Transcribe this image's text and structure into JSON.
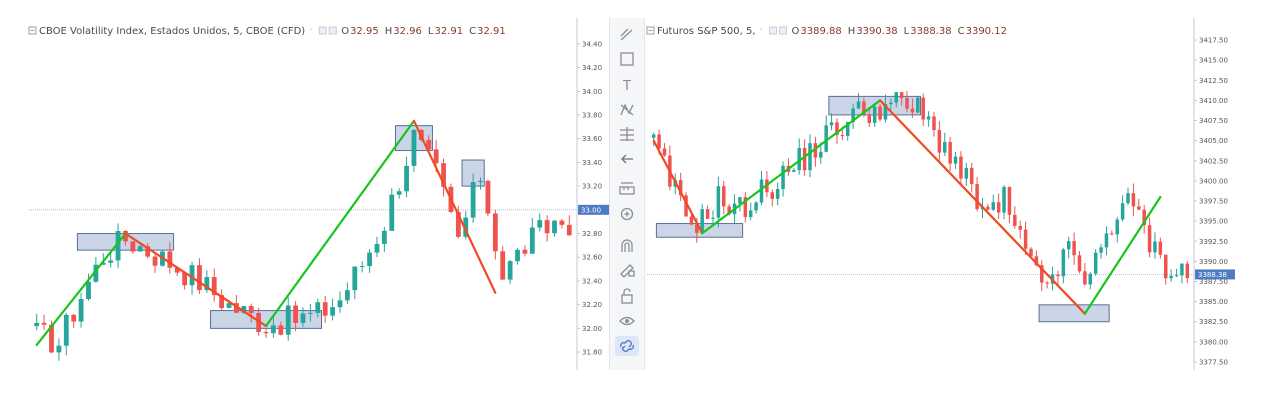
{
  "toolbar": {
    "icons": [
      "trendline-icon",
      "rectangle-icon",
      "text-icon",
      "pattern-icon",
      "fib-icon",
      "back-arrow-icon",
      "measure-icon",
      "zoom-icon",
      "magnet-icon",
      "lock-drawing-icon",
      "lock-icon",
      "eye-icon",
      "link-icon"
    ]
  },
  "chart_data": [
    {
      "type": "candlestick",
      "title": "CBOE Volatility Index, Estados Unidos, 5, CBOE (CFD)",
      "ohlc": {
        "o_label": "O",
        "o": "32.95",
        "h_label": "H",
        "h": "32.96",
        "l_label": "L",
        "l": "32.91",
        "c_label": "C",
        "c": "32.91"
      },
      "ylim": [
        31.75,
        34.5
      ],
      "yticks": [
        "34.40",
        "34.20",
        "34.00",
        "33.80",
        "33.60",
        "33.40",
        "33.20",
        "33.00",
        "32.80",
        "32.60",
        "32.40",
        "32.20",
        "32.00",
        "31.80"
      ],
      "price_tag": "33.00",
      "current_price": 33.0,
      "colors": {
        "up": "#26a69a",
        "down": "#ef5350",
        "zig_down": "#f04a23",
        "zig_up": "#19c41e",
        "box": "#9fb3d6"
      },
      "zigzag": [
        {
          "i": 0,
          "y": 31.86,
          "dir": "up"
        },
        {
          "i": 12,
          "y": 32.8,
          "dir": "down"
        },
        {
          "i": 31,
          "y": 32.02,
          "dir": "up"
        },
        {
          "i": 51,
          "y": 33.75,
          "dir": "down"
        },
        {
          "i": 62,
          "y": 32.3,
          "dir": "up"
        }
      ],
      "zones": [
        {
          "i0": 6,
          "i1": 18,
          "y0": 32.66,
          "y1": 32.8
        },
        {
          "i0": 24,
          "i1": 38,
          "y0": 32.0,
          "y1": 32.15
        },
        {
          "i0": 49,
          "i1": 53,
          "y0": 33.5,
          "y1": 33.71
        },
        {
          "i0": 58,
          "i1": 60,
          "y0": 33.2,
          "y1": 33.42
        }
      ],
      "anchors": [
        [
          0,
          31.95
        ],
        [
          3,
          31.88
        ],
        [
          6,
          32.28
        ],
        [
          9,
          32.62
        ],
        [
          12,
          32.76
        ],
        [
          15,
          32.66
        ],
        [
          18,
          32.56
        ],
        [
          22,
          32.4
        ],
        [
          26,
          32.2
        ],
        [
          31,
          32.04
        ],
        [
          35,
          32.08
        ],
        [
          38,
          32.12
        ],
        [
          41,
          32.25
        ],
        [
          44,
          32.55
        ],
        [
          47,
          32.9
        ],
        [
          51,
          33.62
        ],
        [
          54,
          33.3
        ],
        [
          57,
          32.75
        ],
        [
          60,
          33.3
        ],
        [
          63,
          32.45
        ],
        [
          66,
          32.7
        ],
        [
          70,
          32.9
        ],
        [
          72,
          32.9
        ]
      ]
    },
    {
      "type": "candlestick",
      "title": "Futuros S&P 500, 5,",
      "ohlc": {
        "o_label": "O",
        "o": "3389.88",
        "h_label": "H",
        "h": "3390.38",
        "l_label": "L",
        "l": "3388.38",
        "c_label": "C",
        "c": "3390.12"
      },
      "ylim": [
        3377,
        3418.5
      ],
      "yticks": [
        "3417.50",
        "3415.00",
        "3412.50",
        "3410.00",
        "3407.50",
        "3405.00",
        "3402.50",
        "3400.00",
        "3397.50",
        "3395.00",
        "3392.50",
        "3390.00",
        "3387.50",
        "3385.00",
        "3382.50",
        "3380.00",
        "3377.50"
      ],
      "price_tag": "3388.38",
      "current_price": 3388.38,
      "colors": {
        "up": "#26a69a",
        "down": "#ef5350",
        "zig_down": "#f04a23",
        "zig_up": "#19c41e",
        "box": "#9fb3d6"
      },
      "zigzag": [
        {
          "i": 0,
          "y": 3405.0,
          "dir": "down"
        },
        {
          "i": 9,
          "y": 3393.5,
          "dir": "up"
        },
        {
          "i": 42,
          "y": 3410.0,
          "dir": "down"
        },
        {
          "i": 80,
          "y": 3383.5,
          "dir": "up"
        },
        {
          "i": 94,
          "y": 3398.0,
          "dir": "none"
        }
      ],
      "zones": [
        {
          "i0": 1,
          "i1": 16,
          "y0": 3393.0,
          "y1": 3394.7
        },
        {
          "i0": 33,
          "i1": 49,
          "y0": 3408.2,
          "y1": 3410.5
        },
        {
          "i0": 72,
          "i1": 84,
          "y0": 3382.5,
          "y1": 3384.6
        }
      ],
      "anchors": [
        [
          0,
          3404.5
        ],
        [
          3,
          3400.0
        ],
        [
          6,
          3395.5
        ],
        [
          9,
          3395.0
        ],
        [
          12,
          3398.0
        ],
        [
          15,
          3396.0
        ],
        [
          18,
          3397.5
        ],
        [
          23,
          3400.0
        ],
        [
          28,
          3403.0
        ],
        [
          33,
          3406.0
        ],
        [
          38,
          3408.5
        ],
        [
          42,
          3409.2
        ],
        [
          46,
          3409.5
        ],
        [
          49,
          3408.8
        ],
        [
          52,
          3406.0
        ],
        [
          55,
          3403.5
        ],
        [
          59,
          3398.5
        ],
        [
          62,
          3395.5
        ],
        [
          65,
          3397.5
        ],
        [
          68,
          3392.5
        ],
        [
          72,
          3386.5
        ],
        [
          75,
          3389.5
        ],
        [
          78,
          3391.5
        ],
        [
          80,
          3386.0
        ],
        [
          83,
          3392.0
        ],
        [
          87,
          3397.5
        ],
        [
          90,
          3395.5
        ],
        [
          93,
          3391.0
        ],
        [
          96,
          3389.0
        ],
        [
          99,
          3388.5
        ]
      ]
    }
  ]
}
